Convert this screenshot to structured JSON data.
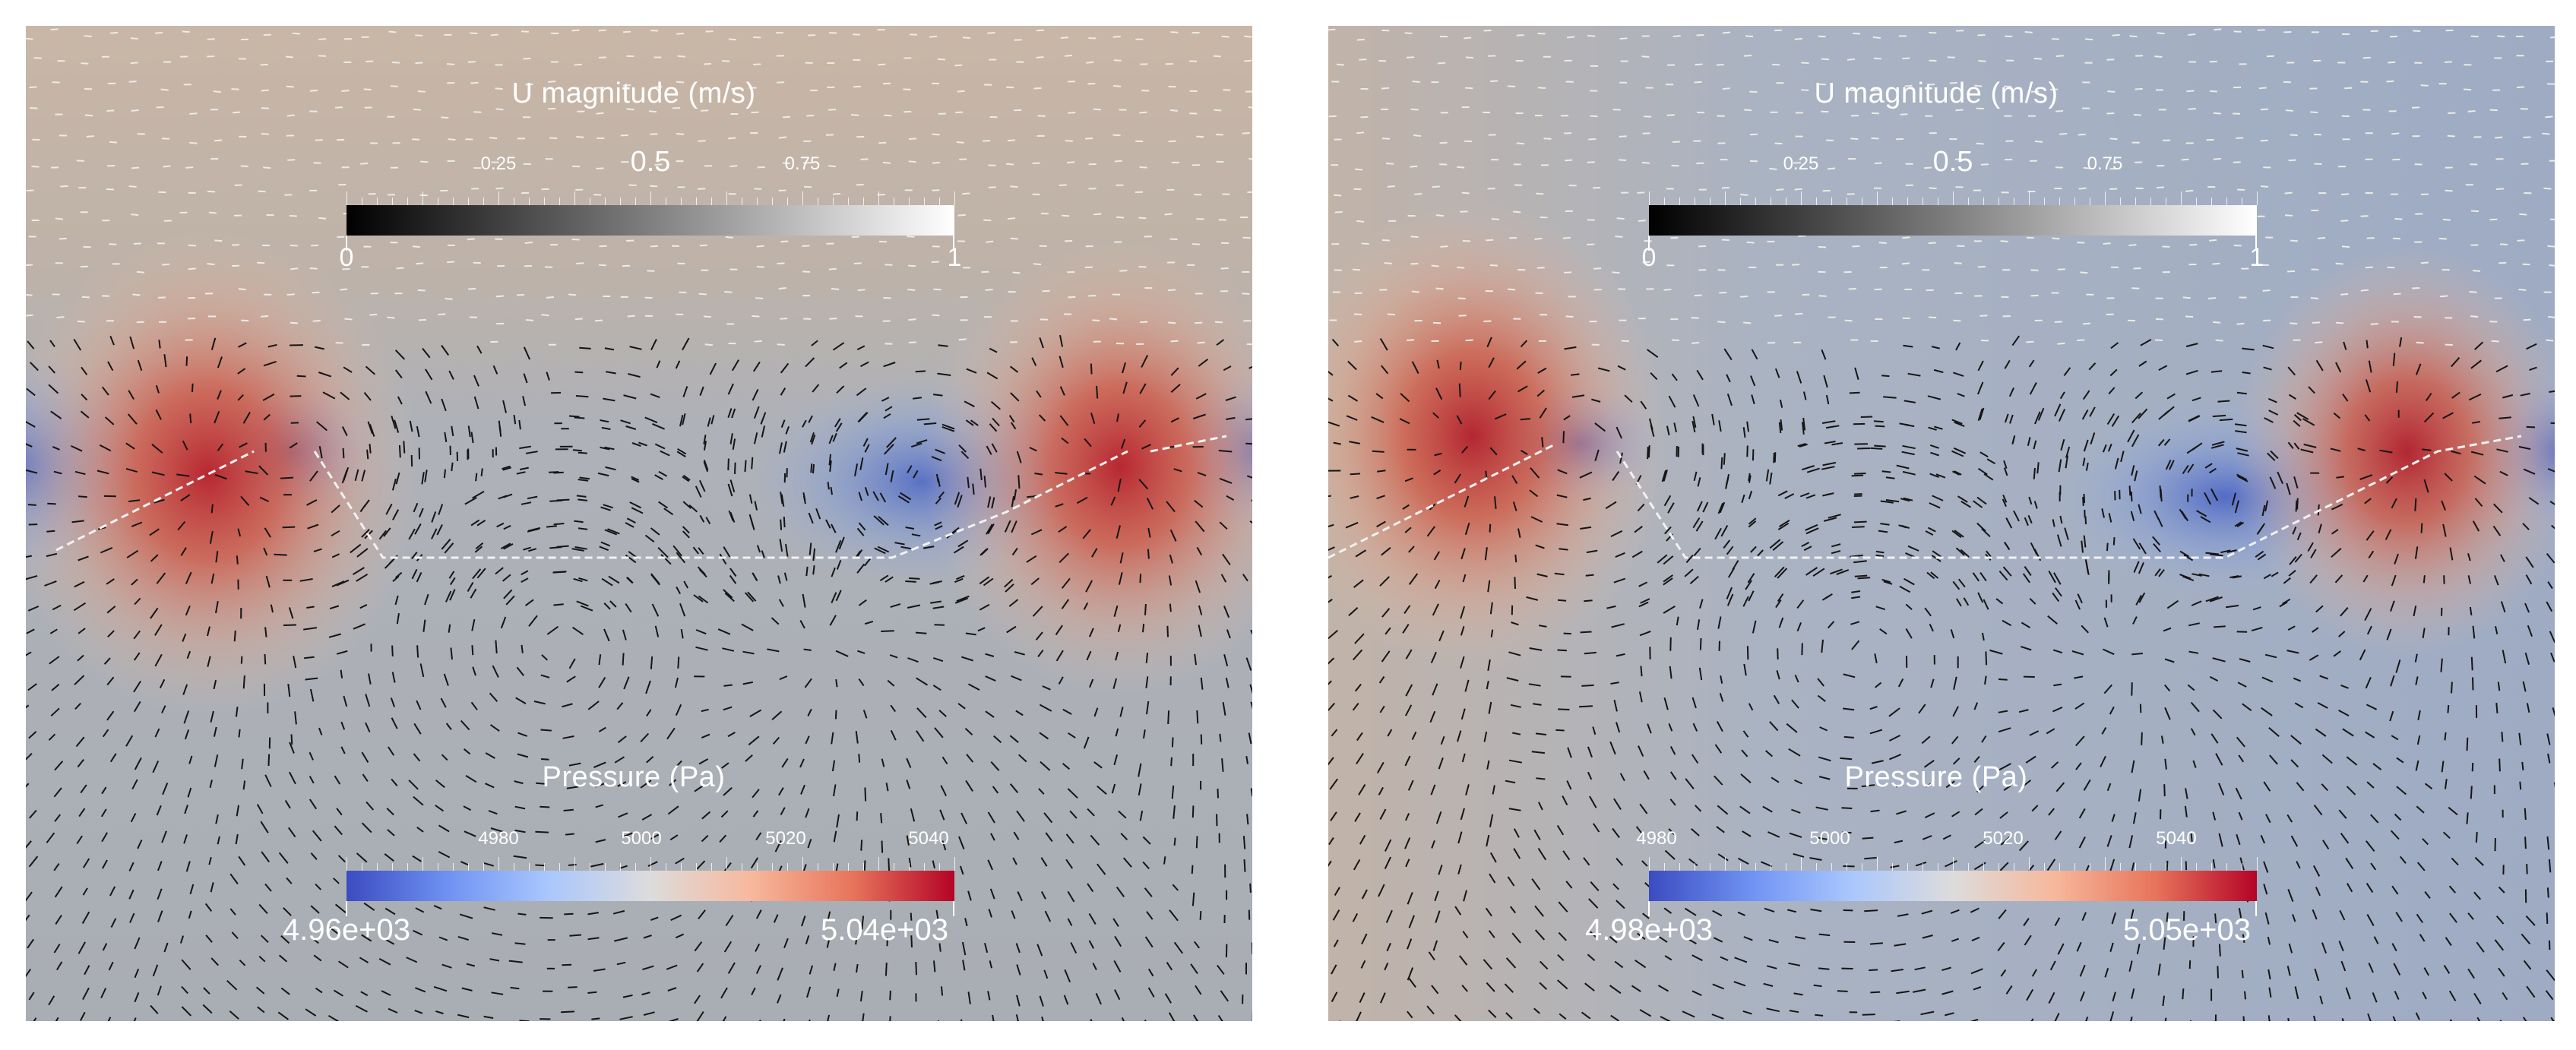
{
  "panels": [
    {
      "id": "left",
      "velocity_legend": {
        "title": "U magnitude (m/s)",
        "min_label": "0",
        "max_label": "1",
        "tick_labels": [
          "0.25",
          "0.5",
          "0.75"
        ]
      },
      "pressure_legend": {
        "title": "Pressure (Pa)",
        "min_label": "4.96e+03",
        "max_label": "5.04e+03",
        "tick_labels": [
          "4980",
          "5000",
          "5020",
          "5040"
        ]
      }
    },
    {
      "id": "right",
      "velocity_legend": {
        "title": "U magnitude (m/s)",
        "min_label": "0",
        "max_label": "1",
        "tick_labels": [
          "0.25",
          "0.5",
          "0.75"
        ]
      },
      "pressure_legend": {
        "title": "Pressure (Pa)",
        "min_label": "4.98e+03",
        "max_label": "5.05e+03",
        "tick_labels": [
          "4980",
          "5000",
          "5020",
          "5040"
        ]
      }
    }
  ],
  "colors": {
    "background_neutral": "#b4b5b3",
    "high_pressure": "#b40426",
    "low_pressure": "#3b4cc0",
    "vector_dark": "#111111",
    "vector_light": "#f0f0f0"
  },
  "icons": [
    "velocity-vector-glyph"
  ]
}
